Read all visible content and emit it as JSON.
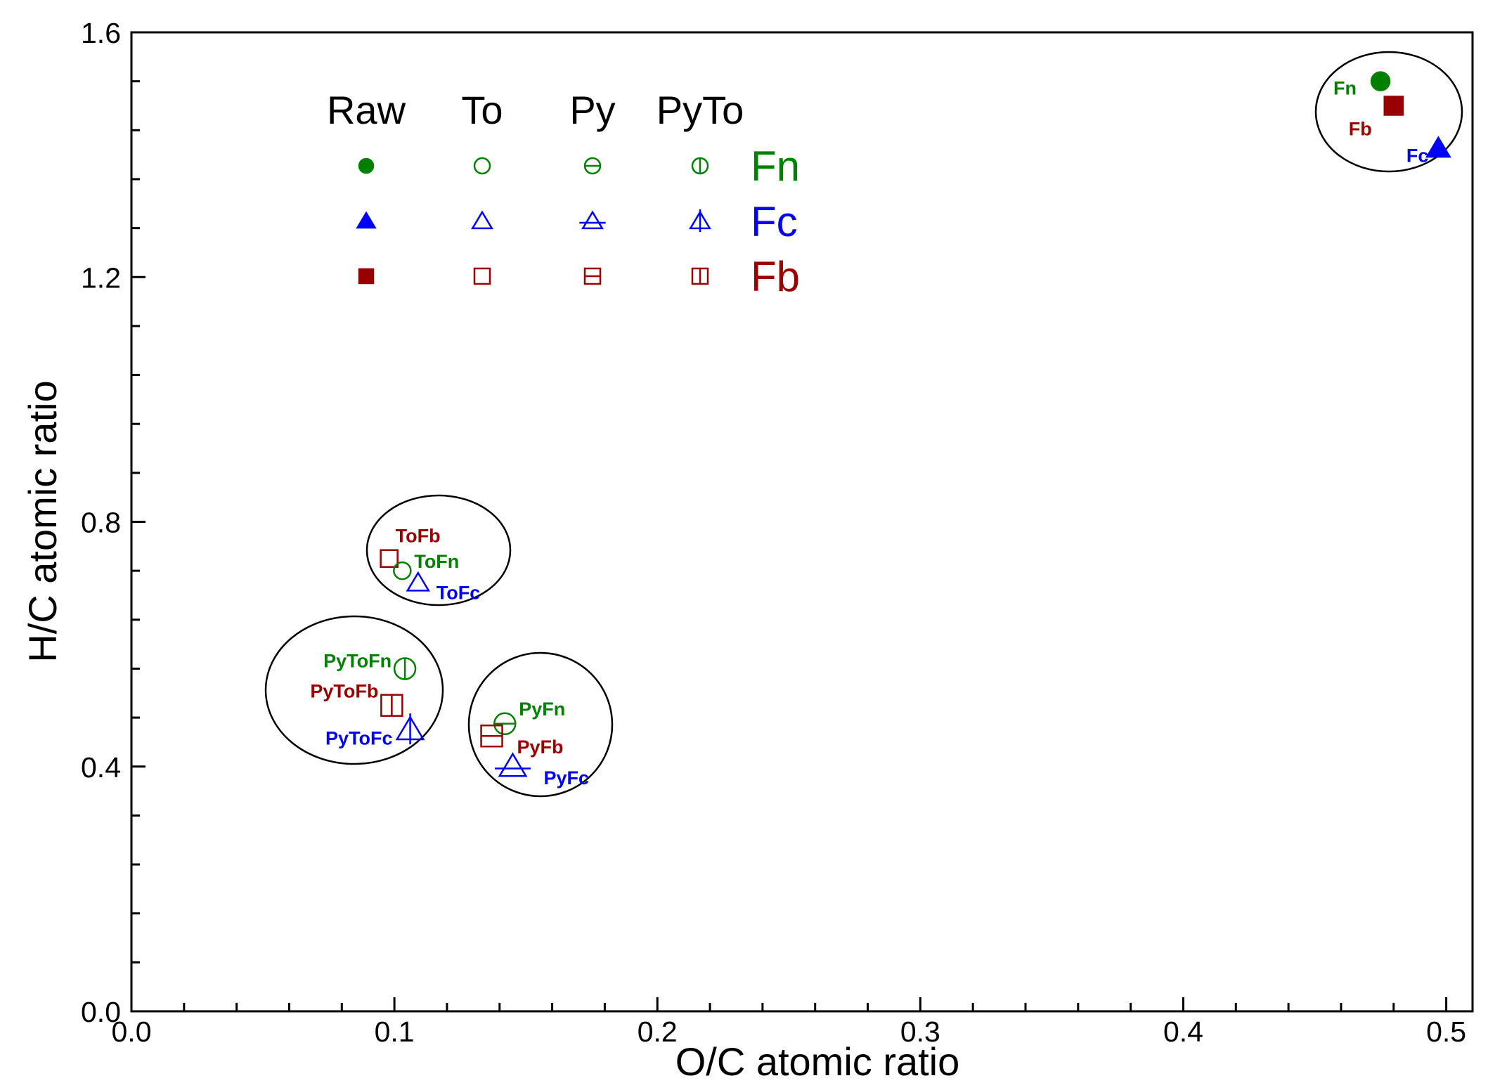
{
  "chart_data": {
    "type": "scatter",
    "xlabel": "O/C atomic ratio",
    "ylabel": "H/C atomic ratio",
    "xlim": [
      0.0,
      0.51
    ],
    "ylim": [
      0.0,
      1.6
    ],
    "x_ticks": [
      "0.0",
      "0.1",
      "0.2",
      "0.3",
      "0.4",
      "0.5"
    ],
    "y_ticks": [
      "0.0",
      "0.4",
      "0.8",
      "1.2",
      "1.6"
    ],
    "colors": {
      "Fn": "#008000",
      "Fc": "#0000ff",
      "Fb": "#990000"
    },
    "series": [
      {
        "name": "Fn",
        "group": "Fn",
        "treatment": "Raw",
        "x": 0.475,
        "y": 1.52
      },
      {
        "name": "Fb",
        "group": "Fb",
        "treatment": "Raw",
        "x": 0.48,
        "y": 1.48
      },
      {
        "name": "Fc",
        "group": "Fc",
        "treatment": "Raw",
        "x": 0.497,
        "y": 1.41
      },
      {
        "name": "ToFb",
        "group": "Fb",
        "treatment": "To",
        "x": 0.098,
        "y": 0.74
      },
      {
        "name": "ToFn",
        "group": "Fn",
        "treatment": "To",
        "x": 0.103,
        "y": 0.72
      },
      {
        "name": "ToFc",
        "group": "Fc",
        "treatment": "To",
        "x": 0.109,
        "y": 0.7
      },
      {
        "name": "PyToFn",
        "group": "Fn",
        "treatment": "PyTo",
        "x": 0.104,
        "y": 0.56
      },
      {
        "name": "PyToFb",
        "group": "Fb",
        "treatment": "PyTo",
        "x": 0.099,
        "y": 0.5
      },
      {
        "name": "PyToFc",
        "group": "Fc",
        "treatment": "PyTo",
        "x": 0.106,
        "y": 0.46
      },
      {
        "name": "PyFn",
        "group": "Fn",
        "treatment": "Py",
        "x": 0.142,
        "y": 0.47
      },
      {
        "name": "PyFb",
        "group": "Fb",
        "treatment": "Py",
        "x": 0.137,
        "y": 0.45
      },
      {
        "name": "PyFc",
        "group": "Fc",
        "treatment": "Py",
        "x": 0.145,
        "y": 0.4
      }
    ],
    "legend": {
      "columns": [
        "Raw",
        "To",
        "Py",
        "PyTo"
      ],
      "rows": [
        "Fn",
        "Fc",
        "Fb"
      ],
      "placement": "top-left"
    }
  }
}
